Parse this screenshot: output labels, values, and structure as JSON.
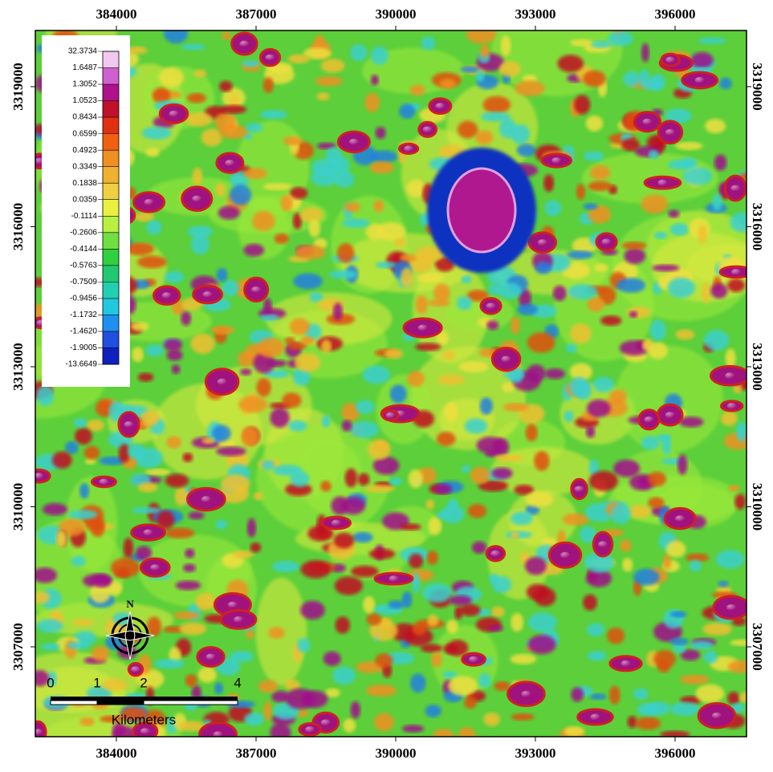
{
  "map": {
    "x_ticks": [
      384000,
      387000,
      390000,
      393000,
      396000
    ],
    "y_ticks": [
      3319000,
      3316000,
      3313000,
      3310000,
      3307000
    ],
    "xlim": [
      382259,
      397534
    ],
    "ylim": [
      3305075,
      3320203
    ],
    "legend": {
      "labels": [
        "32.3734",
        "1.6487",
        "1.3052",
        "1.0523",
        "0.8434",
        "0.6599",
        "0.4923",
        "0.3349",
        "0.1838",
        "0.0359",
        "-0.1114",
        "-0.2606",
        "-0.4144",
        "-0.5763",
        "-0.7509",
        "-0.9456",
        "-1.1732",
        "-1.4620",
        "-1.9005",
        "-13.6649"
      ],
      "colors": [
        "#f2c8f0",
        "#d060d0",
        "#b0108a",
        "#c0102a",
        "#e03010",
        "#f06010",
        "#f09020",
        "#f0b030",
        "#f0d040",
        "#e8f040",
        "#b8f040",
        "#70e040",
        "#30d040",
        "#20c870",
        "#20d0b0",
        "#20c8e0",
        "#2090f0",
        "#2050e0",
        "#1020c0",
        "#000080"
      ]
    },
    "scale_bar": {
      "labels": [
        "0",
        "1",
        "2",
        "4"
      ],
      "unit": "Kilometers"
    },
    "north": "N"
  }
}
